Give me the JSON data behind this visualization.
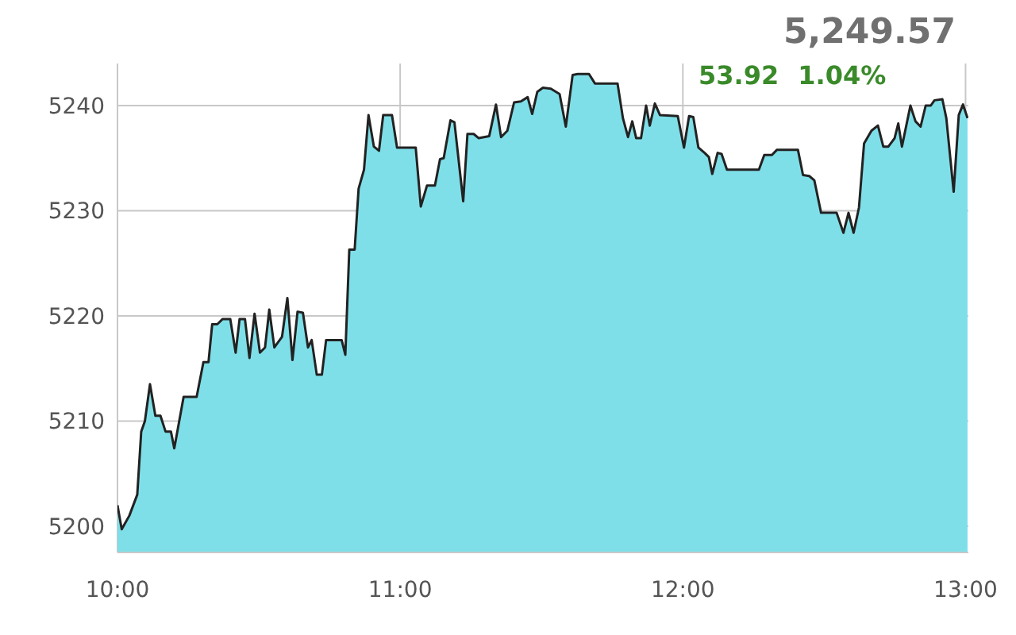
{
  "chart_data": {
    "type": "area",
    "x": [
      10.0,
      10.015,
      10.042,
      10.07,
      10.084,
      10.097,
      10.115,
      10.134,
      10.152,
      10.17,
      10.189,
      10.201,
      10.234,
      10.28,
      10.304,
      10.322,
      10.335,
      10.353,
      10.372,
      10.399,
      10.418,
      10.432,
      10.451,
      10.467,
      10.485,
      10.504,
      10.522,
      10.537,
      10.555,
      10.582,
      10.601,
      10.619,
      10.637,
      10.656,
      10.674,
      10.687,
      10.705,
      10.723,
      10.738,
      10.793,
      10.806,
      10.82,
      10.839,
      10.853,
      10.872,
      10.888,
      10.907,
      10.925,
      10.94,
      10.971,
      10.989,
      11.055,
      11.073,
      11.095,
      11.123,
      11.141,
      11.154,
      11.178,
      11.192,
      11.223,
      11.238,
      11.26,
      11.278,
      11.315,
      11.339,
      11.357,
      11.379,
      11.403,
      11.427,
      11.451,
      11.467,
      11.485,
      11.505,
      11.533,
      11.564,
      11.586,
      11.61,
      11.628,
      11.668,
      11.689,
      11.769,
      11.788,
      11.806,
      11.821,
      11.835,
      11.852,
      11.87,
      11.883,
      11.901,
      11.919,
      11.982,
      12.004,
      12.022,
      12.037,
      12.055,
      12.077,
      12.092,
      12.104,
      12.123,
      12.137,
      12.156,
      12.269,
      12.288,
      12.315,
      12.333,
      12.407,
      12.425,
      12.447,
      12.465,
      12.489,
      12.544,
      12.568,
      12.586,
      12.604,
      12.623,
      12.641,
      12.667,
      12.69,
      12.709,
      12.727,
      12.749,
      12.762,
      12.775,
      12.805,
      12.823,
      12.841,
      12.859,
      12.877,
      12.89,
      12.918,
      12.932,
      12.958,
      12.976,
      12.991,
      13.007
    ],
    "series": [
      {
        "color": "#7fdfe8",
        "values": [
          5202,
          5199.7,
          5201,
          5203,
          5209,
          5210,
          5213.5,
          5210.5,
          5210.5,
          5209,
          5209,
          5207.4,
          5212.3,
          5212.3,
          5215.6,
          5215.6,
          5219.2,
          5219.2,
          5219.7,
          5219.7,
          5216.5,
          5219.7,
          5219.7,
          5216,
          5220.2,
          5216.5,
          5217,
          5220.6,
          5217,
          5218,
          5221.7,
          5215.8,
          5220.4,
          5220.3,
          5217,
          5217.7,
          5214.4,
          5214.4,
          5217.7,
          5217.7,
          5216.3,
          5226.3,
          5226.3,
          5232.1,
          5233.9,
          5239.1,
          5236.1,
          5235.7,
          5239.1,
          5239.1,
          5236,
          5236,
          5230.4,
          5232.4,
          5232.4,
          5234.9,
          5235,
          5238.6,
          5238.4,
          5230.9,
          5237.3,
          5237.3,
          5236.9,
          5237.1,
          5240.1,
          5237,
          5237.6,
          5240.3,
          5240.4,
          5240.8,
          5239.2,
          5241.3,
          5241.7,
          5241.6,
          5241.1,
          5238,
          5242.9,
          5243,
          5243,
          5242.1,
          5242.1,
          5238.8,
          5237,
          5238.5,
          5236.9,
          5236.9,
          5240,
          5238.1,
          5240.2,
          5239.1,
          5239,
          5236,
          5239,
          5238.9,
          5236,
          5235.5,
          5235.1,
          5233.5,
          5235.5,
          5235.4,
          5233.9,
          5233.9,
          5235.3,
          5235.3,
          5235.8,
          5235.8,
          5233.4,
          5233.3,
          5232.9,
          5229.8,
          5229.8,
          5227.9,
          5229.8,
          5227.9,
          5230.3,
          5236.4,
          5237.6,
          5238.1,
          5236.1,
          5236.1,
          5236.9,
          5238.3,
          5236.1,
          5240,
          5238.5,
          5238,
          5240,
          5240,
          5240.5,
          5240.6,
          5238.8,
          5231.8,
          5239.1,
          5240.1,
          5238.8
        ]
      }
    ],
    "xlim": [
      10,
      13.01
    ],
    "xticks": [
      {
        "value": 10,
        "label": "10:00"
      },
      {
        "value": 11,
        "label": "11:00"
      },
      {
        "value": 12,
        "label": "12:00"
      },
      {
        "value": 13,
        "label": "13:00"
      }
    ],
    "ylim": [
      5197.5,
      5244
    ],
    "yticks": [
      5200,
      5210,
      5220,
      5230,
      5240
    ],
    "grid": true,
    "annotations": [
      "5,249.57",
      "53.92",
      "1.04%"
    ]
  }
}
